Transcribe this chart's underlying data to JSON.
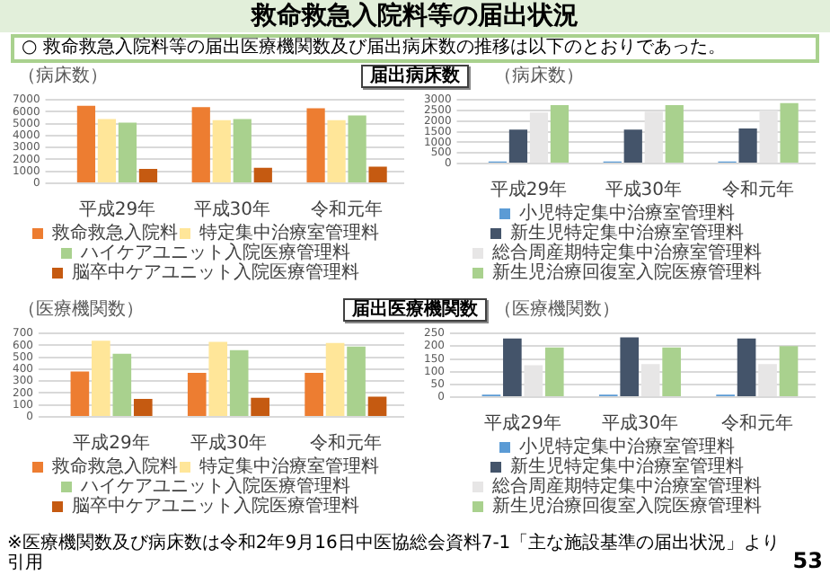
{
  "chart_data": [
    {
      "type": "bar",
      "title": "救命救急入院料等の届出状況",
      "subtitle": "○ 救命救急入院料等の届出医療機関数及び届出病床数の推移は以下のとおりであった。",
      "annotations": [
        "届出病床数"
      ],
      "ylabel": "（病床数）",
      "categories": [
        "平成29年",
        "平成30年",
        "令和元年"
      ],
      "series": [
        {
          "name": "救命救急入院料",
          "color": "#ed7d31",
          "values": [
            6500,
            6400,
            6300
          ]
        },
        {
          "name": "特定集中治療室管理料",
          "color": "#ffe699",
          "values": [
            5400,
            5300,
            5300
          ]
        },
        {
          "name": "ハイケアユニット入院医療管理料",
          "color": "#a9d18e",
          "values": [
            5100,
            5400,
            5700
          ]
        },
        {
          "name": "脳卒中ケアユニット入院医療管理料",
          "color": "#c55a11",
          "values": [
            1200,
            1300,
            1400
          ]
        }
      ],
      "ylim": [
        0,
        7000
      ],
      "yticks": [
        0,
        1000,
        2000,
        3000,
        4000,
        5000,
        6000,
        7000
      ],
      "grid": "y",
      "legend": "bottom"
    },
    {
      "type": "bar",
      "ylabel": "（病床数）",
      "categories": [
        "平成29年",
        "平成30年",
        "令和元年"
      ],
      "series": [
        {
          "name": "小児特定集中治療室管理料",
          "color": "#5b9bd5",
          "values": [
            100,
            100,
            100
          ]
        },
        {
          "name": "新生児特定集中治療室管理料",
          "color": "#44546a",
          "values": [
            1600,
            1600,
            1650
          ]
        },
        {
          "name": "総合周産期特定集中治療室管理料",
          "color": "#e7e6e6",
          "values": [
            2400,
            2450,
            2500
          ]
        },
        {
          "name": "新生児治療回復室入院医療管理料",
          "color": "#a9d18e",
          "values": [
            2750,
            2750,
            2850
          ]
        }
      ],
      "ylim": [
        0,
        3000
      ],
      "yticks": [
        0,
        500,
        1000,
        1500,
        2000,
        2500,
        3000
      ],
      "grid": "y",
      "legend": "bottom"
    },
    {
      "type": "bar",
      "annotations": [
        "届出医療機関数"
      ],
      "ylabel": "（医療機関数）",
      "categories": [
        "平成29年",
        "平成30年",
        "令和元年"
      ],
      "series": [
        {
          "name": "救命救急入院料",
          "color": "#ed7d31",
          "values": [
            380,
            370,
            370
          ]
        },
        {
          "name": "特定集中治療室管理料",
          "color": "#ffe699",
          "values": [
            640,
            630,
            620
          ]
        },
        {
          "name": "ハイケアユニット入院医療管理料",
          "color": "#a9d18e",
          "values": [
            530,
            560,
            590
          ]
        },
        {
          "name": "脳卒中ケアユニット入院医療管理料",
          "color": "#c55a11",
          "values": [
            150,
            160,
            170
          ]
        }
      ],
      "ylim": [
        0,
        700
      ],
      "yticks": [
        0,
        100,
        200,
        300,
        400,
        500,
        600,
        700
      ],
      "grid": "y",
      "legend": "bottom"
    },
    {
      "type": "bar",
      "annotations": [
        "※医療機関数及び病床数は令和2年9月16日中医協総会資料7-1「主な施設基準の届出状況」より引用",
        "53"
      ],
      "ylabel": "（医療機関数）",
      "categories": [
        "平成29年",
        "平成30年",
        "令和元年"
      ],
      "series": [
        {
          "name": "小児特定集中治療室管理料",
          "color": "#5b9bd5",
          "values": [
            10,
            10,
            10
          ]
        },
        {
          "name": "新生児特定集中治療室管理料",
          "color": "#44546a",
          "values": [
            230,
            235,
            230
          ]
        },
        {
          "name": "総合周産期特定集中治療室管理料",
          "color": "#e7e6e6",
          "values": [
            125,
            130,
            130
          ]
        },
        {
          "name": "新生児治療回復室入院医療管理料",
          "color": "#a9d18e",
          "values": [
            195,
            195,
            200
          ]
        }
      ],
      "ylim": [
        0,
        250
      ],
      "yticks": [
        0,
        50,
        100,
        150,
        200,
        250
      ],
      "grid": "y",
      "legend": "bottom"
    }
  ]
}
